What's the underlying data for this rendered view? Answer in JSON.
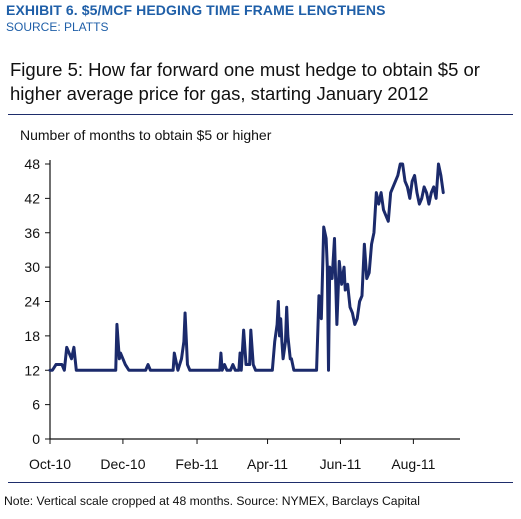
{
  "header": {
    "exhibit": "EXHIBIT 6. $5/MCF HEDGING TIME FRAME LENGTHENS",
    "source": "SOURCE: PLATTS"
  },
  "figure": {
    "title": "Figure 5: How far forward one must hedge to obtain $5 or higher average price for gas, starting January 2012",
    "note": "Note: Vertical scale cropped at 48 months. Source: NYMEX, Barclays Capital"
  },
  "colors": {
    "header": "#1f5fa8",
    "line": "#1b2a6b",
    "axis": "#111111",
    "rule": "#1e2d6b"
  },
  "chart_data": {
    "type": "line",
    "title": "",
    "xlabel": "",
    "ylabel": "Number of months to obtain $5 or higher",
    "ylim": [
      0,
      48
    ],
    "yticks": [
      0,
      6,
      12,
      18,
      24,
      30,
      36,
      42,
      48
    ],
    "xlim": [
      "2010-10-01",
      "2011-09-09"
    ],
    "xtick_labels": [
      "Oct-10",
      "Dec-10",
      "Feb-11",
      "Apr-11",
      "Jun-11",
      "Aug-11"
    ],
    "xtick_dates": [
      "2010-10-01",
      "2010-12-01",
      "2011-02-01",
      "2011-04-01",
      "2011-06-01",
      "2011-08-01"
    ],
    "grid": false,
    "series": [
      {
        "values": [
          [
            "2010-10-01",
            12
          ],
          [
            "2010-10-03",
            12
          ],
          [
            "2010-10-06",
            13
          ],
          [
            "2010-10-08",
            13
          ],
          [
            "2010-10-11",
            13
          ],
          [
            "2010-10-13",
            12
          ],
          [
            "2010-10-15",
            16
          ],
          [
            "2010-10-17",
            15
          ],
          [
            "2010-10-19",
            14
          ],
          [
            "2010-10-21",
            16
          ],
          [
            "2010-10-23",
            12
          ],
          [
            "2010-10-25",
            12
          ],
          [
            "2010-11-01",
            12
          ],
          [
            "2010-11-10",
            12
          ],
          [
            "2010-11-20",
            12
          ],
          [
            "2010-11-25",
            12
          ],
          [
            "2010-11-26",
            20
          ],
          [
            "2010-11-28",
            14
          ],
          [
            "2010-11-29",
            15
          ],
          [
            "2010-12-01",
            14
          ],
          [
            "2010-12-03",
            13
          ],
          [
            "2010-12-06",
            12
          ],
          [
            "2010-12-20",
            12
          ],
          [
            "2010-12-22",
            13
          ],
          [
            "2010-12-24",
            12
          ],
          [
            "2011-01-01",
            12
          ],
          [
            "2011-01-10",
            12
          ],
          [
            "2011-01-12",
            12
          ],
          [
            "2011-01-13",
            15
          ],
          [
            "2011-01-16",
            12
          ],
          [
            "2011-01-19",
            14
          ],
          [
            "2011-01-21",
            17
          ],
          [
            "2011-01-22",
            22
          ],
          [
            "2011-01-24",
            13
          ],
          [
            "2011-01-26",
            12
          ],
          [
            "2011-02-01",
            12
          ],
          [
            "2011-02-20",
            12
          ],
          [
            "2011-02-21",
            15
          ],
          [
            "2011-02-22",
            12
          ],
          [
            "2011-02-24",
            13
          ],
          [
            "2011-02-26",
            12
          ],
          [
            "2011-03-01",
            12
          ],
          [
            "2011-03-03",
            13
          ],
          [
            "2011-03-05",
            12
          ],
          [
            "2011-03-08",
            12
          ],
          [
            "2011-03-09",
            15
          ],
          [
            "2011-03-10",
            12
          ],
          [
            "2011-03-12",
            19
          ],
          [
            "2011-03-14",
            13
          ],
          [
            "2011-03-17",
            13
          ],
          [
            "2011-03-18",
            19
          ],
          [
            "2011-03-20",
            13
          ],
          [
            "2011-03-22",
            12
          ],
          [
            "2011-04-01",
            12
          ],
          [
            "2011-04-05",
            12
          ],
          [
            "2011-04-07",
            17
          ],
          [
            "2011-04-09",
            20
          ],
          [
            "2011-04-10",
            24
          ],
          [
            "2011-04-11",
            18
          ],
          [
            "2011-04-12",
            21
          ],
          [
            "2011-04-13",
            17
          ],
          [
            "2011-04-14",
            14
          ],
          [
            "2011-04-16",
            17
          ],
          [
            "2011-04-17",
            23
          ],
          [
            "2011-04-18",
            18
          ],
          [
            "2011-04-19",
            16
          ],
          [
            "2011-04-20",
            14
          ],
          [
            "2011-04-21",
            14
          ],
          [
            "2011-04-23",
            12
          ],
          [
            "2011-05-10",
            12
          ],
          [
            "2011-05-12",
            12
          ],
          [
            "2011-05-14",
            25
          ],
          [
            "2011-05-15",
            22
          ],
          [
            "2011-05-16",
            21
          ],
          [
            "2011-05-18",
            37
          ],
          [
            "2011-05-20",
            35
          ],
          [
            "2011-05-21",
            30
          ],
          [
            "2011-05-22",
            12
          ],
          [
            "2011-05-23",
            30
          ],
          [
            "2011-05-25",
            28
          ],
          [
            "2011-05-27",
            35
          ],
          [
            "2011-05-29",
            20
          ],
          [
            "2011-05-31",
            31
          ],
          [
            "2011-06-02",
            27
          ],
          [
            "2011-06-04",
            30
          ],
          [
            "2011-06-05",
            26
          ],
          [
            "2011-06-07",
            27
          ],
          [
            "2011-06-09",
            23
          ],
          [
            "2011-06-11",
            22
          ],
          [
            "2011-06-13",
            20
          ],
          [
            "2011-06-15",
            21
          ],
          [
            "2011-06-17",
            24
          ],
          [
            "2011-06-19",
            25
          ],
          [
            "2011-06-21",
            34
          ],
          [
            "2011-06-23",
            28
          ],
          [
            "2011-06-25",
            29
          ],
          [
            "2011-06-27",
            34
          ],
          [
            "2011-06-29",
            36
          ],
          [
            "2011-07-01",
            43
          ],
          [
            "2011-07-03",
            41
          ],
          [
            "2011-07-05",
            43
          ],
          [
            "2011-07-07",
            40
          ],
          [
            "2011-07-09",
            39
          ],
          [
            "2011-07-11",
            38
          ],
          [
            "2011-07-13",
            43
          ],
          [
            "2011-07-15",
            44
          ],
          [
            "2011-07-17",
            45
          ],
          [
            "2011-07-19",
            46
          ],
          [
            "2011-07-21",
            48
          ],
          [
            "2011-07-23",
            48
          ],
          [
            "2011-07-25",
            45
          ],
          [
            "2011-07-27",
            44
          ],
          [
            "2011-07-29",
            42
          ],
          [
            "2011-07-31",
            45
          ],
          [
            "2011-08-02",
            46
          ],
          [
            "2011-08-04",
            43
          ],
          [
            "2011-08-06",
            41
          ],
          [
            "2011-08-08",
            42
          ],
          [
            "2011-08-10",
            44
          ],
          [
            "2011-08-12",
            43
          ],
          [
            "2011-08-14",
            41
          ],
          [
            "2011-08-16",
            43
          ],
          [
            "2011-08-18",
            44
          ],
          [
            "2011-08-20",
            42
          ],
          [
            "2011-08-22",
            48
          ],
          [
            "2011-08-24",
            46
          ],
          [
            "2011-08-26",
            43
          ]
        ]
      }
    ]
  }
}
